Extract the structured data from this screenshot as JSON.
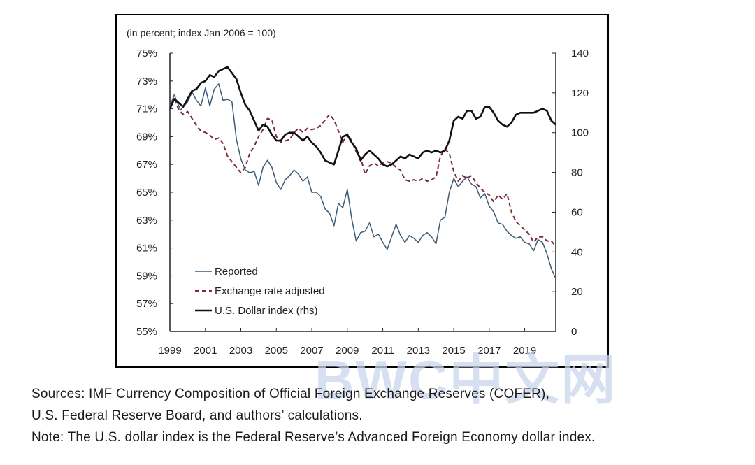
{
  "chart_data": {
    "type": "line",
    "title": "",
    "unit_label": "(in percent; index Jan-2006 = 100)",
    "xlabel": "",
    "ylabel": "",
    "x_ticks": [
      "1999",
      "2001",
      "2003",
      "2005",
      "2007",
      "2009",
      "2011",
      "2013",
      "2015",
      "2017",
      "2019"
    ],
    "xlim": [
      1999,
      2020.75
    ],
    "y_left": {
      "lim": [
        55,
        75
      ],
      "ticks": [
        "75%",
        "73%",
        "71%",
        "69%",
        "67%",
        "65%",
        "63%",
        "61%",
        "59%",
        "57%",
        "55%"
      ]
    },
    "y_right": {
      "lim": [
        0,
        140
      ],
      "ticks": [
        "140",
        "120",
        "100",
        "80",
        "60",
        "40",
        "20",
        "0"
      ]
    },
    "legend_position": "bottom-left",
    "series": [
      {
        "name": "Reported",
        "axis": "left",
        "color": "#3d5a78",
        "style": "solid",
        "points": [
          [
            1999.0,
            71.2
          ],
          [
            1999.25,
            72.0
          ],
          [
            1999.4,
            71.5
          ],
          [
            1999.6,
            70.9
          ],
          [
            1999.8,
            71.2
          ],
          [
            2000.0,
            71.5
          ],
          [
            2000.25,
            72.2
          ],
          [
            2000.5,
            71.6
          ],
          [
            2000.75,
            71.2
          ],
          [
            2001.0,
            72.5
          ],
          [
            2001.25,
            71.2
          ],
          [
            2001.5,
            72.4
          ],
          [
            2001.75,
            72.8
          ],
          [
            2002.0,
            71.6
          ],
          [
            2002.25,
            71.7
          ],
          [
            2002.5,
            71.5
          ],
          [
            2002.75,
            68.8
          ],
          [
            2003.0,
            67.4
          ],
          [
            2003.25,
            66.6
          ],
          [
            2003.5,
            66.4
          ],
          [
            2003.75,
            66.5
          ],
          [
            2004.0,
            65.5
          ],
          [
            2004.25,
            66.8
          ],
          [
            2004.5,
            67.3
          ],
          [
            2004.75,
            66.8
          ],
          [
            2005.0,
            65.7
          ],
          [
            2005.25,
            65.2
          ],
          [
            2005.5,
            65.9
          ],
          [
            2005.75,
            66.2
          ],
          [
            2006.0,
            66.6
          ],
          [
            2006.25,
            66.3
          ],
          [
            2006.5,
            65.8
          ],
          [
            2006.75,
            66.1
          ],
          [
            2007.0,
            65.0
          ],
          [
            2007.25,
            65.0
          ],
          [
            2007.5,
            64.7
          ],
          [
            2007.75,
            63.8
          ],
          [
            2008.0,
            63.5
          ],
          [
            2008.25,
            62.6
          ],
          [
            2008.5,
            64.2
          ],
          [
            2008.75,
            63.9
          ],
          [
            2009.0,
            65.2
          ],
          [
            2009.25,
            63.1
          ],
          [
            2009.5,
            61.5
          ],
          [
            2009.75,
            62.1
          ],
          [
            2010.0,
            62.2
          ],
          [
            2010.25,
            62.8
          ],
          [
            2010.5,
            61.8
          ],
          [
            2010.75,
            62.0
          ],
          [
            2011.0,
            61.4
          ],
          [
            2011.25,
            60.9
          ],
          [
            2011.5,
            61.8
          ],
          [
            2011.75,
            62.7
          ],
          [
            2012.0,
            61.9
          ],
          [
            2012.25,
            61.4
          ],
          [
            2012.5,
            61.9
          ],
          [
            2012.75,
            61.7
          ],
          [
            2013.0,
            61.4
          ],
          [
            2013.25,
            61.9
          ],
          [
            2013.5,
            62.1
          ],
          [
            2013.75,
            61.8
          ],
          [
            2014.0,
            61.3
          ],
          [
            2014.25,
            63.0
          ],
          [
            2014.5,
            63.2
          ],
          [
            2014.75,
            65.0
          ],
          [
            2015.0,
            66.0
          ],
          [
            2015.25,
            65.4
          ],
          [
            2015.5,
            65.8
          ],
          [
            2015.75,
            66.1
          ],
          [
            2016.0,
            65.6
          ],
          [
            2016.25,
            65.4
          ],
          [
            2016.5,
            64.6
          ],
          [
            2016.75,
            64.9
          ],
          [
            2017.0,
            64.0
          ],
          [
            2017.25,
            63.6
          ],
          [
            2017.5,
            62.8
          ],
          [
            2017.75,
            62.7
          ],
          [
            2018.0,
            62.2
          ],
          [
            2018.25,
            61.9
          ],
          [
            2018.5,
            61.7
          ],
          [
            2018.75,
            61.8
          ],
          [
            2019.0,
            61.4
          ],
          [
            2019.25,
            61.3
          ],
          [
            2019.5,
            60.8
          ],
          [
            2019.75,
            61.6
          ],
          [
            2020.0,
            61.4
          ],
          [
            2020.25,
            60.6
          ],
          [
            2020.5,
            59.5
          ],
          [
            2020.75,
            58.8
          ]
        ]
      },
      {
        "name": "Exchange rate adjusted",
        "axis": "left",
        "color": "#7b2a36",
        "style": "dashed",
        "points": [
          [
            1999.0,
            71.0
          ],
          [
            1999.25,
            71.8
          ],
          [
            1999.5,
            70.9
          ],
          [
            1999.75,
            70.6
          ],
          [
            2000.0,
            70.8
          ],
          [
            2000.25,
            70.3
          ],
          [
            2000.5,
            69.8
          ],
          [
            2000.75,
            69.4
          ],
          [
            2001.0,
            69.3
          ],
          [
            2001.25,
            69.1
          ],
          [
            2001.5,
            68.8
          ],
          [
            2001.75,
            68.9
          ],
          [
            2002.0,
            68.5
          ],
          [
            2002.25,
            67.6
          ],
          [
            2002.5,
            67.2
          ],
          [
            2002.75,
            66.8
          ],
          [
            2003.0,
            66.4
          ],
          [
            2003.25,
            66.8
          ],
          [
            2003.5,
            67.8
          ],
          [
            2003.75,
            68.3
          ],
          [
            2004.0,
            69.0
          ],
          [
            2004.25,
            69.5
          ],
          [
            2004.5,
            70.3
          ],
          [
            2004.75,
            70.2
          ],
          [
            2005.0,
            69.0
          ],
          [
            2005.25,
            68.6
          ],
          [
            2005.5,
            68.7
          ],
          [
            2005.75,
            68.8
          ],
          [
            2006.0,
            69.3
          ],
          [
            2006.25,
            69.6
          ],
          [
            2006.5,
            69.3
          ],
          [
            2006.75,
            69.6
          ],
          [
            2007.0,
            69.5
          ],
          [
            2007.25,
            69.6
          ],
          [
            2007.5,
            69.8
          ],
          [
            2007.75,
            70.2
          ],
          [
            2008.0,
            70.6
          ],
          [
            2008.25,
            70.2
          ],
          [
            2008.5,
            69.4
          ],
          [
            2008.75,
            68.6
          ],
          [
            2009.0,
            69.2
          ],
          [
            2009.25,
            68.7
          ],
          [
            2009.5,
            67.9
          ],
          [
            2009.75,
            67.5
          ],
          [
            2010.0,
            66.3
          ],
          [
            2010.25,
            66.9
          ],
          [
            2010.5,
            67.1
          ],
          [
            2010.75,
            66.9
          ],
          [
            2011.0,
            67.1
          ],
          [
            2011.25,
            67.2
          ],
          [
            2011.5,
            67.1
          ],
          [
            2011.75,
            66.8
          ],
          [
            2012.0,
            66.6
          ],
          [
            2012.25,
            65.9
          ],
          [
            2012.5,
            65.8
          ],
          [
            2012.75,
            65.9
          ],
          [
            2013.0,
            65.8
          ],
          [
            2013.25,
            66.0
          ],
          [
            2013.5,
            65.8
          ],
          [
            2013.75,
            65.9
          ],
          [
            2014.0,
            66.1
          ],
          [
            2014.25,
            67.6
          ],
          [
            2014.5,
            68.1
          ],
          [
            2014.75,
            67.8
          ],
          [
            2015.0,
            66.5
          ],
          [
            2015.25,
            65.8
          ],
          [
            2015.5,
            66.2
          ],
          [
            2015.75,
            66.0
          ],
          [
            2016.0,
            66.2
          ],
          [
            2016.25,
            65.7
          ],
          [
            2016.5,
            65.3
          ],
          [
            2016.75,
            65.0
          ],
          [
            2017.0,
            64.8
          ],
          [
            2017.25,
            64.3
          ],
          [
            2017.5,
            64.8
          ],
          [
            2017.75,
            64.5
          ],
          [
            2018.0,
            64.9
          ],
          [
            2018.25,
            63.6
          ],
          [
            2018.5,
            62.9
          ],
          [
            2018.75,
            62.6
          ],
          [
            2019.0,
            62.3
          ],
          [
            2019.25,
            62.0
          ],
          [
            2019.5,
            61.4
          ],
          [
            2019.75,
            61.8
          ],
          [
            2020.0,
            61.8
          ],
          [
            2020.25,
            61.5
          ],
          [
            2020.5,
            61.5
          ],
          [
            2020.75,
            61.1
          ]
        ]
      },
      {
        "name": "U.S. Dollar index (rhs)",
        "axis": "right",
        "color": "#111111",
        "style": "solid",
        "points": [
          [
            1999.0,
            112
          ],
          [
            1999.25,
            117
          ],
          [
            1999.5,
            115
          ],
          [
            1999.75,
            113
          ],
          [
            2000.0,
            117
          ],
          [
            2000.25,
            121
          ],
          [
            2000.5,
            122
          ],
          [
            2000.75,
            125
          ],
          [
            2001.0,
            126
          ],
          [
            2001.25,
            129
          ],
          [
            2001.5,
            128
          ],
          [
            2001.75,
            131
          ],
          [
            2002.0,
            132
          ],
          [
            2002.25,
            133
          ],
          [
            2002.5,
            130
          ],
          [
            2002.75,
            127
          ],
          [
            2003.0,
            120
          ],
          [
            2003.25,
            114
          ],
          [
            2003.5,
            111
          ],
          [
            2003.75,
            106
          ],
          [
            2004.0,
            101
          ],
          [
            2004.25,
            104
          ],
          [
            2004.5,
            103
          ],
          [
            2004.75,
            99
          ],
          [
            2005.0,
            96
          ],
          [
            2005.25,
            96
          ],
          [
            2005.5,
            99
          ],
          [
            2005.75,
            100
          ],
          [
            2006.0,
            100
          ],
          [
            2006.25,
            98
          ],
          [
            2006.5,
            96
          ],
          [
            2006.75,
            98
          ],
          [
            2007.0,
            95
          ],
          [
            2007.25,
            93
          ],
          [
            2007.5,
            90
          ],
          [
            2007.75,
            86
          ],
          [
            2008.0,
            85
          ],
          [
            2008.25,
            84
          ],
          [
            2008.5,
            91
          ],
          [
            2008.75,
            98
          ],
          [
            2009.0,
            99
          ],
          [
            2009.25,
            95
          ],
          [
            2009.5,
            92
          ],
          [
            2009.75,
            86
          ],
          [
            2010.0,
            89
          ],
          [
            2010.25,
            91
          ],
          [
            2010.5,
            89
          ],
          [
            2010.75,
            87
          ],
          [
            2011.0,
            84
          ],
          [
            2011.25,
            83
          ],
          [
            2011.5,
            84
          ],
          [
            2011.75,
            86
          ],
          [
            2012.0,
            88
          ],
          [
            2012.25,
            87
          ],
          [
            2012.5,
            89
          ],
          [
            2012.75,
            88
          ],
          [
            2013.0,
            87
          ],
          [
            2013.25,
            90
          ],
          [
            2013.5,
            91
          ],
          [
            2013.75,
            90
          ],
          [
            2014.0,
            91
          ],
          [
            2014.25,
            90
          ],
          [
            2014.5,
            91
          ],
          [
            2014.75,
            96
          ],
          [
            2015.0,
            106
          ],
          [
            2015.25,
            108
          ],
          [
            2015.5,
            107
          ],
          [
            2015.75,
            111
          ],
          [
            2016.0,
            111
          ],
          [
            2016.25,
            107
          ],
          [
            2016.5,
            108
          ],
          [
            2016.75,
            113
          ],
          [
            2017.0,
            113
          ],
          [
            2017.25,
            110
          ],
          [
            2017.5,
            106
          ],
          [
            2017.75,
            104
          ],
          [
            2018.0,
            103
          ],
          [
            2018.25,
            105
          ],
          [
            2018.5,
            109
          ],
          [
            2018.75,
            110
          ],
          [
            2019.0,
            110
          ],
          [
            2019.25,
            110
          ],
          [
            2019.5,
            110
          ],
          [
            2019.75,
            111
          ],
          [
            2020.0,
            112
          ],
          [
            2020.25,
            111
          ],
          [
            2020.5,
            106
          ],
          [
            2020.75,
            104
          ]
        ]
      }
    ]
  },
  "notes": {
    "line1": "Sources: IMF Currency Composition of Official Foreign Exchange Reserves (COFER),",
    "line2": "U.S. Federal Reserve Board, and authors’ calculations.",
    "line3": "Note: The U.S. dollar index is the Federal Reserve’s Advanced Foreign Economy dollar index."
  },
  "watermark": {
    "text": "BWC中文网",
    "color": "#c9d6ec"
  }
}
